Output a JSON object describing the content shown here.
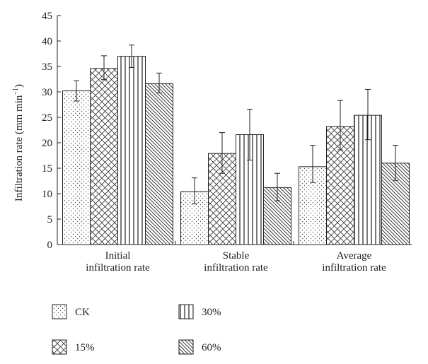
{
  "chart_data": {
    "type": "bar",
    "ylabel_main": "Infiltration rate (mm min",
    "ylabel_sup": "−1",
    "ylabel_close": ")",
    "ylim": [
      0,
      45
    ],
    "yticks": [
      "0",
      "5",
      "10",
      "15",
      "20",
      "25",
      "30",
      "35",
      "40",
      "45"
    ],
    "categories": [
      [
        "Initial",
        "infiltration rate"
      ],
      [
        "Stable",
        "infiltration rate"
      ],
      [
        "Average",
        "infiltration rate"
      ]
    ],
    "series": [
      {
        "name": "CK",
        "pattern": "dots",
        "values": [
          30.2,
          10.4,
          15.3
        ],
        "err_low": [
          28.2,
          8.0,
          12.2
        ],
        "err_high": [
          32.2,
          13.1,
          19.5
        ]
      },
      {
        "name": "15%",
        "pattern": "crosshatch",
        "values": [
          34.6,
          17.9,
          23.2
        ],
        "err_low": [
          32.4,
          14.0,
          18.6
        ],
        "err_high": [
          37.1,
          22.0,
          28.3
        ]
      },
      {
        "name": "30%",
        "pattern": "vertical",
        "values": [
          37.0,
          21.6,
          25.4
        ],
        "err_low": [
          34.8,
          16.6,
          20.6
        ],
        "err_high": [
          39.2,
          26.6,
          30.5
        ]
      },
      {
        "name": "60%",
        "pattern": "diagonal",
        "values": [
          31.6,
          11.2,
          16.0
        ],
        "err_low": [
          29.8,
          8.6,
          12.6
        ],
        "err_high": [
          33.7,
          14.0,
          19.5
        ]
      }
    ],
    "grid": false,
    "legend_position": "bottom"
  }
}
